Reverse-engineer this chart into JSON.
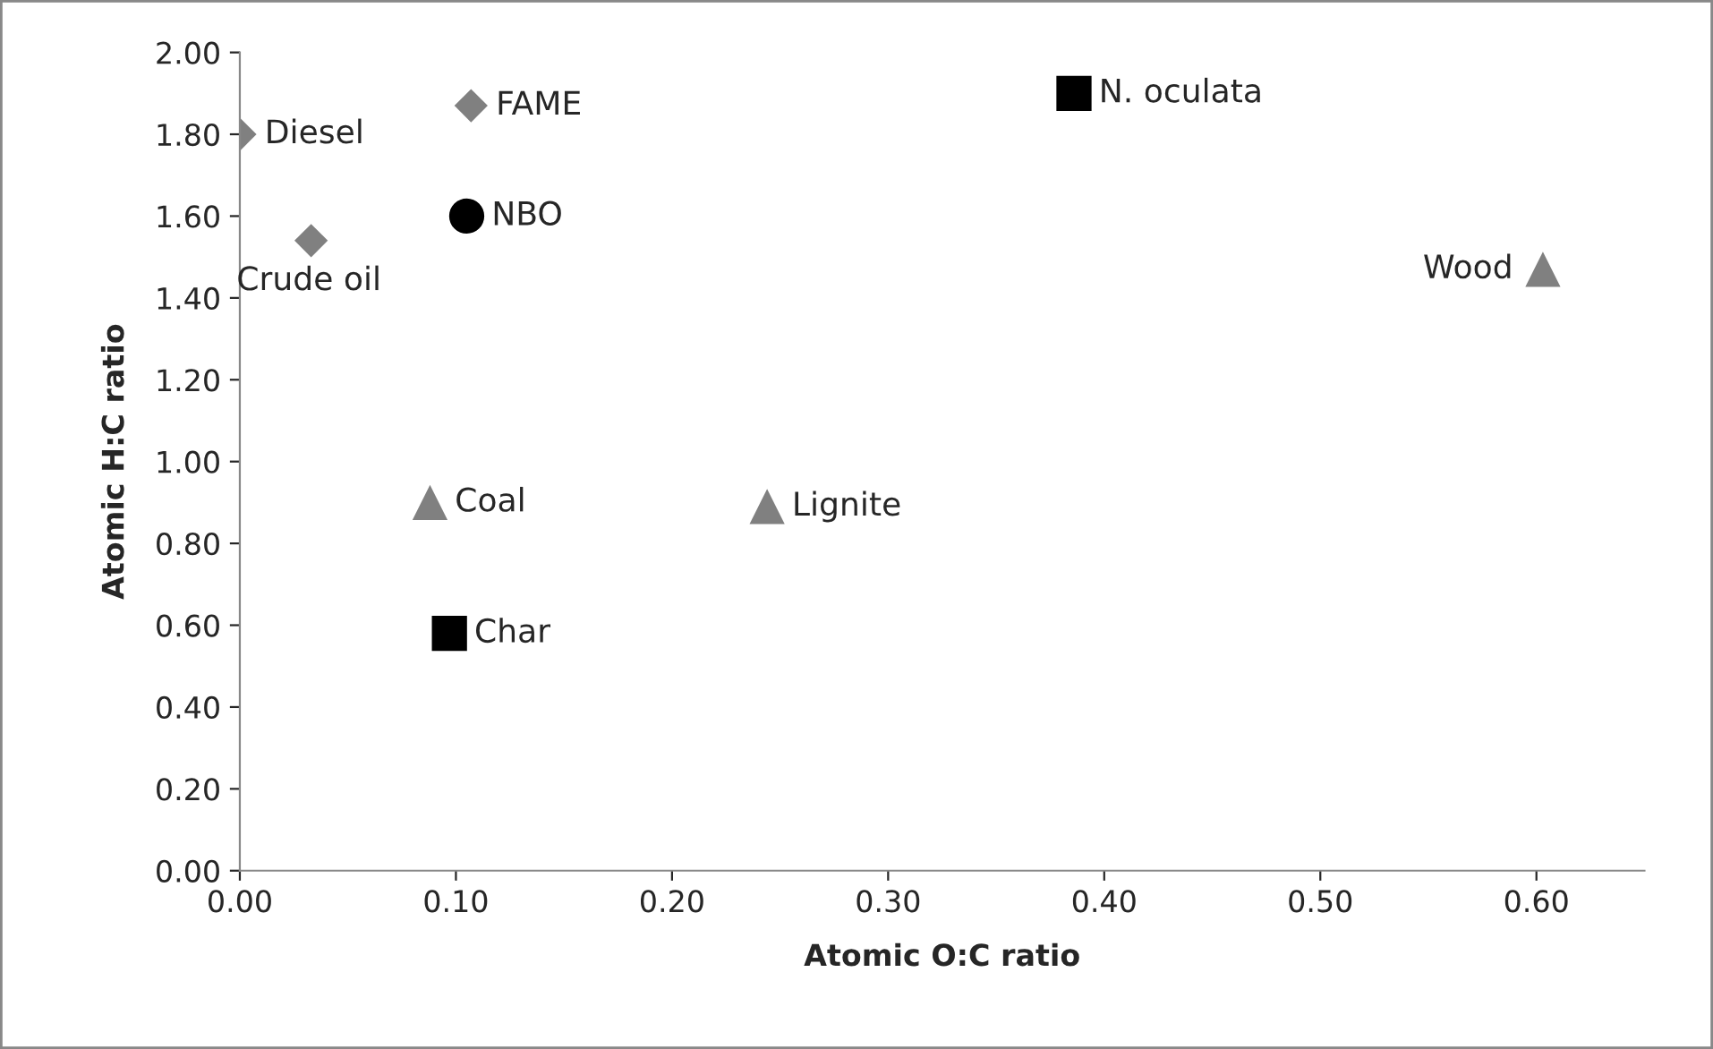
{
  "chart_data": {
    "type": "scatter",
    "xlabel": "Atomic O:C ratio",
    "ylabel": "Atomic H:C ratio",
    "xlim": [
      0,
      0.65
    ],
    "xticks": [
      {
        "value": 0,
        "label": "0.00"
      },
      {
        "value": 0.1,
        "label": "0.10"
      },
      {
        "value": 0.2,
        "label": "0.20"
      },
      {
        "value": 0.3,
        "label": "0.30"
      },
      {
        "value": 0.4,
        "label": "0.40"
      },
      {
        "value": 0.5,
        "label": "0.50"
      },
      {
        "value": 0.6,
        "label": "0.60"
      }
    ],
    "ylim": [
      0,
      2
    ],
    "yticks": [
      {
        "value": 0,
        "label": "0.00"
      },
      {
        "value": 0.2,
        "label": "0.20"
      },
      {
        "value": 0.4,
        "label": "0.40"
      },
      {
        "value": 0.6,
        "label": "0.60"
      },
      {
        "value": 0.8,
        "label": "0.80"
      },
      {
        "value": 1.0,
        "label": "1.00"
      },
      {
        "value": 1.2,
        "label": "1.20"
      },
      {
        "value": 1.4,
        "label": "1.40"
      },
      {
        "value": 1.6,
        "label": "1.60"
      },
      {
        "value": 1.8,
        "label": "1.80"
      },
      {
        "value": 2.0,
        "label": "2.00"
      }
    ],
    "grid": false,
    "legend": false,
    "series": [
      {
        "color": "#808080",
        "marker": "diamond",
        "x": [
          0.0,
          0.033,
          0.107
        ],
        "values": [
          1.8,
          1.54,
          1.87
        ]
      },
      {
        "color": "#000000",
        "marker": "circle",
        "x": [
          0.105
        ],
        "values": [
          1.6
        ]
      },
      {
        "color": "#000000",
        "marker": "square",
        "x": [
          0.386,
          0.097
        ],
        "values": [
          1.9,
          0.58
        ]
      },
      {
        "color": "#808080",
        "marker": "triangle",
        "x": [
          0.088,
          0.244,
          0.603
        ],
        "values": [
          0.9,
          0.89,
          1.47
        ]
      }
    ],
    "annotations": [
      {
        "text": "Diesel",
        "x": 0.0,
        "y": 1.8
      },
      {
        "text": "Crude oil",
        "x": 0.033,
        "y": 1.54
      },
      {
        "text": "FAME",
        "x": 0.107,
        "y": 1.87
      },
      {
        "text": "NBO",
        "x": 0.105,
        "y": 1.6
      },
      {
        "text": "N. oculata",
        "x": 0.386,
        "y": 1.9
      },
      {
        "text": "Char",
        "x": 0.097,
        "y": 0.58
      },
      {
        "text": "Coal",
        "x": 0.088,
        "y": 0.9
      },
      {
        "text": "Lignite",
        "x": 0.244,
        "y": 0.89
      },
      {
        "text": "Wood",
        "x": 0.603,
        "y": 1.47
      }
    ]
  }
}
